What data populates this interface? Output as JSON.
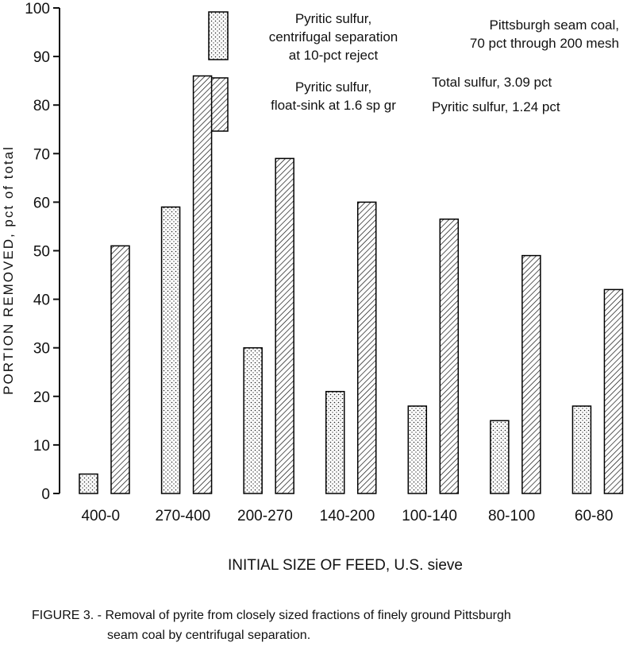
{
  "chart_data": {
    "type": "bar",
    "categories": [
      "400-0",
      "270-400",
      "200-270",
      "140-200",
      "100-140",
      "80-100",
      "60-80"
    ],
    "series": [
      {
        "name": "Pyritic sulfur,\ncentrifugal separation\nat 10-pct reject",
        "color": "#000000",
        "pattern": "dots",
        "values": [
          4,
          59,
          30,
          21,
          18,
          15,
          18
        ]
      },
      {
        "name": "Pyritic sulfur,\nfloat-sink at 1.6 sp gr",
        "color": "#000000",
        "pattern": "hatch",
        "values": [
          51,
          86,
          69,
          60,
          56.5,
          49,
          42
        ]
      }
    ],
    "ylim": [
      0,
      100
    ],
    "yticks": [
      0,
      10,
      20,
      30,
      40,
      50,
      60,
      70,
      80,
      90,
      100
    ],
    "y_label": "PORTION REMOVED, pct of total",
    "x_label": "INITIAL SIZE OF FEED, U.S. sieve",
    "annotations": [
      "Pittsburgh seam coal,\n70 pct through 200 mesh",
      "Total sulfur, 3.09 pct",
      "Pyritic sulfur, 1.24 pct"
    ],
    "caption": [
      "FIGURE 3. - Removal of pyrite from closely sized fractions of finely ground Pittsburgh",
      "seam coal by centrifugal separation."
    ]
  }
}
